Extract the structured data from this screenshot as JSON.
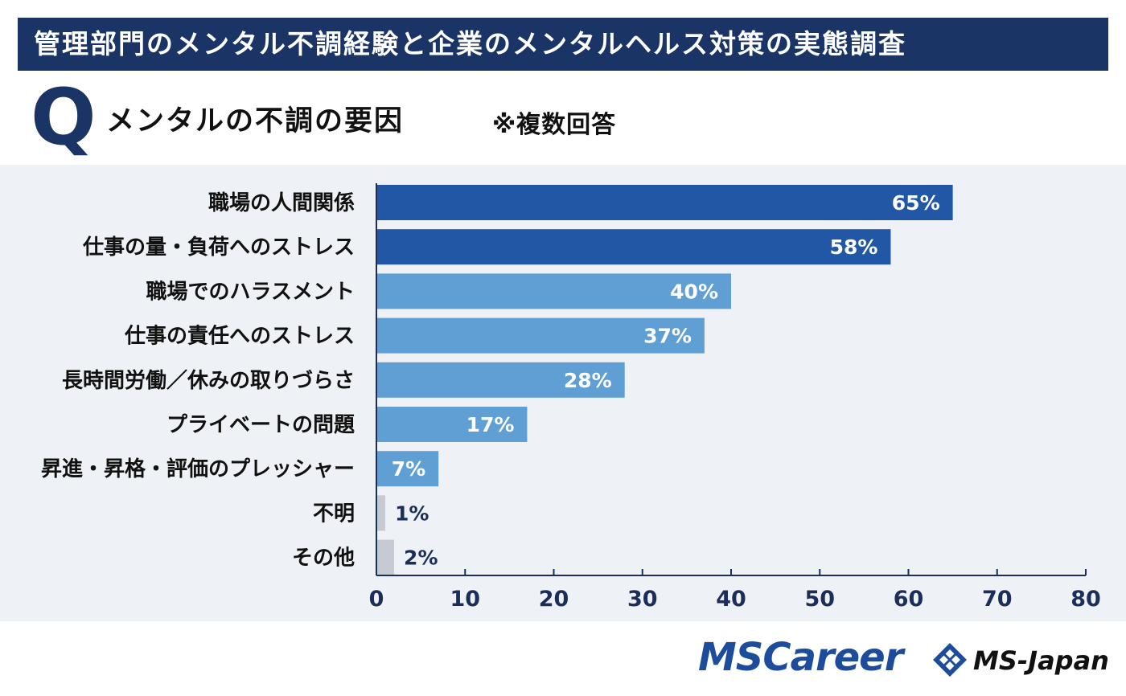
{
  "header": {
    "title": "管理部門のメンタル不調経験と企業のメンタルヘルス対策の実態調査"
  },
  "question": {
    "letter": "Q",
    "text": "メンタルの不調の要因",
    "note": "※複数回答"
  },
  "chart_data": {
    "type": "bar",
    "orientation": "horizontal",
    "categories": [
      "職場の人間関係",
      "仕事の量・負荷へのストレス",
      "職場でのハラスメント",
      "仕事の責任へのストレス",
      "長時間労働／休みの取りづらさ",
      "プライベートの問題",
      "昇進・昇格・評価のプレッシャー",
      "不明",
      "その他"
    ],
    "values": [
      65,
      58,
      40,
      37,
      28,
      17,
      7,
      1,
      2
    ],
    "value_labels": [
      "65%",
      "58%",
      "40%",
      "37%",
      "28%",
      "17%",
      "7%",
      "1%",
      "2%"
    ],
    "xlim": [
      0,
      80
    ],
    "ticks": [
      0,
      10,
      20,
      30,
      40,
      50,
      60,
      70,
      80
    ],
    "grid": false,
    "colors": {
      "dark": "#2257a6",
      "light": "#5f9fd3",
      "gray": "#c5cad3"
    },
    "color_groups": [
      "dark",
      "dark",
      "light",
      "light",
      "light",
      "light",
      "light",
      "gray",
      "gray"
    ]
  },
  "logos": {
    "mscareer": "MSCareer",
    "msjapan": "MS-Japan"
  }
}
